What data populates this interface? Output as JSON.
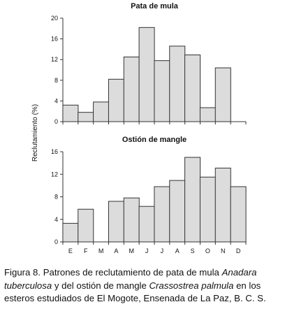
{
  "chart_data": [
    {
      "type": "bar",
      "title": "Pata de mula",
      "categories": [
        "E",
        "F",
        "M",
        "A",
        "M",
        "J",
        "J",
        "A",
        "S",
        "O",
        "N",
        "D"
      ],
      "values": [
        3.2,
        1.8,
        3.8,
        8.2,
        12.5,
        18.2,
        11.8,
        14.6,
        12.9,
        2.7,
        10.4,
        null
      ],
      "ylim": [
        0,
        20
      ],
      "yticks": [
        0,
        4,
        8,
        12,
        16,
        20
      ],
      "show_xtick_labels": false,
      "grid": false
    },
    {
      "type": "bar",
      "title": "Ostión de mangle",
      "categories": [
        "E",
        "F",
        "M",
        "A",
        "M",
        "J",
        "J",
        "A",
        "S",
        "O",
        "N",
        "D"
      ],
      "values": [
        3.3,
        5.8,
        null,
        7.2,
        7.8,
        6.3,
        9.8,
        10.9,
        15.0,
        11.5,
        13.1,
        9.8
      ],
      "ylim": [
        0,
        16
      ],
      "yticks": [
        0,
        4,
        8,
        12,
        16
      ],
      "show_xtick_labels": true,
      "grid": false
    }
  ],
  "shared_ylabel": "Reclutamiento (%)",
  "caption": {
    "prefix": "Figura 8. Patrones de reclutamiento de pata de mula ",
    "species1": "Anadara tuberculosa",
    "middle": " y del ostión de mangle ",
    "species2": "Crassostrea palmula",
    "suffix": " en los esteros estudiados de El Mogote, Ensenada de La Paz, B. C. S."
  }
}
